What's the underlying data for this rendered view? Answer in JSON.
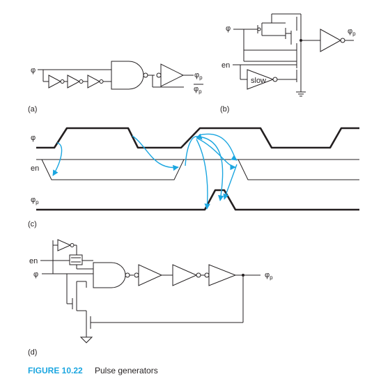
{
  "panels": {
    "a": {
      "label": "(a)",
      "in": "φ",
      "out1": "φ",
      "out1_sub": "p",
      "out2": "φ",
      "out2_sub": "p"
    },
    "b": {
      "label": "(b)",
      "in": "φ",
      "en": "en",
      "out": "φ",
      "out_sub": "p",
      "slow": "slow"
    },
    "c": {
      "label": "(c)",
      "phi": "φ",
      "en": "en",
      "phip": "φ",
      "phip_sub": "p"
    },
    "d": {
      "label": "(d)",
      "en": "en",
      "in": "φ",
      "out": "φ",
      "out_sub": "p"
    }
  },
  "caption": {
    "number": "FIGURE 10.22",
    "text": "Pulse generators"
  },
  "colors": {
    "ink": "#231f20",
    "accent": "#1ba6e0"
  }
}
